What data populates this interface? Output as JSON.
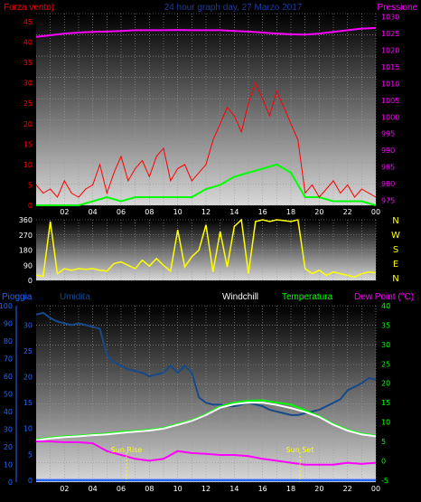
{
  "header": {
    "left_label": "Forza vento)",
    "title": "24 hour graph day, 27 Marzo 2017",
    "right_label": "Pressione"
  },
  "colors": {
    "wind": "#ff0000",
    "windavg": "#00ff00",
    "pressure": "#ff00ff",
    "direction": "#ffff00",
    "rain": "#2266ff",
    "humidity": "#164a8a",
    "windchill": "#ffffff",
    "temperature": "#00ff00",
    "dewpoint": "#ff00ff",
    "grid": "#9a9a9a",
    "axis": "#ffffff"
  },
  "chart_data": [
    {
      "type": "line",
      "name": "wind-pressure",
      "x_ticks": [
        "02",
        "04",
        "06",
        "08",
        "10",
        "12",
        "14",
        "16",
        "18",
        "20",
        "22",
        "00"
      ],
      "y_left_ticks": [
        "0",
        "5",
        "10",
        "15",
        "20",
        "25",
        "30",
        "35",
        "40",
        "45"
      ],
      "y_right_ticks": [
        "975",
        "980",
        "985",
        "990",
        "995",
        "1000",
        "1005",
        "1010",
        "1015",
        "1020",
        "1025",
        "1030"
      ],
      "ylim_left": [
        0,
        47
      ],
      "ylim_right": [
        973.5,
        1031
      ],
      "grid": true,
      "series": [
        {
          "color_key": "pressure",
          "x": [
            0,
            1,
            2,
            3,
            4,
            5,
            6,
            7,
            8,
            9,
            10,
            11,
            12,
            13,
            14,
            15,
            16,
            17,
            18,
            19,
            20,
            21,
            22,
            23,
            24
          ],
          "y": [
            1024,
            1024.5,
            1025,
            1025.3,
            1025.5,
            1025.6,
            1025.8,
            1026,
            1026,
            1026,
            1026.1,
            1026,
            1026,
            1026,
            1025.8,
            1025.6,
            1025.3,
            1025,
            1024.8,
            1024.7,
            1025,
            1025.5,
            1026,
            1026.5,
            1026.7
          ]
        },
        {
          "color_key": "windavg",
          "x": [
            0,
            1,
            2,
            3,
            4,
            5,
            6,
            7,
            8,
            9,
            10,
            11,
            12,
            13,
            14,
            15,
            16,
            17,
            18,
            19,
            20,
            21,
            22,
            23,
            24
          ],
          "y": [
            0,
            0,
            0,
            0,
            1,
            2,
            1,
            2,
            2,
            2,
            2,
            2,
            4,
            5,
            7,
            8,
            9,
            10,
            8,
            2,
            2,
            1,
            1,
            1,
            0
          ]
        },
        {
          "color_key": "wind",
          "x": [
            0,
            0.5,
            1,
            1.5,
            2,
            2.5,
            3,
            3.5,
            4,
            4.5,
            5,
            5.5,
            6,
            6.5,
            7,
            7.5,
            8,
            8.5,
            9,
            9.5,
            10,
            10.5,
            11,
            11.5,
            12,
            12.5,
            13,
            13.5,
            14,
            14.5,
            15,
            15.5,
            16,
            16.5,
            17,
            17.5,
            18,
            18.5,
            19,
            19.5,
            20,
            20.5,
            21,
            21.5,
            22,
            22.5,
            23,
            23.5,
            24
          ],
          "y": [
            5,
            3,
            4,
            2,
            6,
            3,
            2,
            4,
            5,
            10,
            3,
            8,
            12,
            6,
            9,
            11,
            7,
            12,
            14,
            6,
            9,
            10,
            6,
            8,
            10,
            16,
            20,
            24,
            22,
            18,
            25,
            30,
            26,
            22,
            28,
            24,
            20,
            16,
            3,
            5,
            2,
            4,
            6,
            3,
            5,
            2,
            4,
            3,
            2
          ]
        }
      ]
    },
    {
      "type": "line",
      "name": "wind-direction",
      "x_ticks": [],
      "y_left_ticks": [
        "0",
        "90",
        "180",
        "270",
        "360"
      ],
      "y_right_ticks": [
        "N",
        "W",
        "S",
        "E",
        "N"
      ],
      "ylim": [
        0,
        360
      ],
      "grid": true,
      "series": [
        {
          "color_key": "direction",
          "x": [
            0,
            0.5,
            1,
            1.5,
            2,
            2.5,
            3,
            3.5,
            4,
            4.5,
            5,
            5.5,
            6,
            6.5,
            7,
            7.5,
            8,
            8.5,
            9,
            9.5,
            10,
            10.5,
            11,
            11.5,
            12,
            12.5,
            13,
            13.5,
            14,
            14.5,
            15,
            15.5,
            16,
            16.5,
            17,
            17.5,
            18,
            18.5,
            19,
            19.5,
            20,
            20.5,
            21,
            21.5,
            22,
            22.5,
            23,
            23.5,
            24
          ],
          "y": [
            30,
            25,
            350,
            40,
            70,
            60,
            70,
            65,
            70,
            60,
            55,
            100,
            110,
            90,
            70,
            120,
            85,
            130,
            90,
            55,
            300,
            80,
            140,
            180,
            330,
            50,
            290,
            80,
            320,
            360,
            40,
            350,
            360,
            350,
            360,
            355,
            350,
            360,
            70,
            40,
            60,
            30,
            50,
            40,
            30,
            20,
            40,
            50,
            45
          ]
        }
      ]
    },
    {
      "type": "line",
      "name": "rain-humidity-temperature",
      "x_ticks": [
        "02",
        "04",
        "06",
        "08",
        "10",
        "12",
        "14",
        "16",
        "18",
        "20",
        "22",
        "00"
      ],
      "y_left_ticks": [
        "0",
        "5",
        "10",
        "15",
        "20",
        "25",
        "30"
      ],
      "y_left2_ticks": [
        "0",
        "10",
        "20",
        "30",
        "40",
        "50",
        "60",
        "70",
        "80",
        "90",
        "100"
      ],
      "y_right_ticks": [
        "-5",
        "0",
        "5",
        "10",
        "15",
        "20",
        "25",
        "30",
        "35",
        "40"
      ],
      "ylim_temp": [
        -5.5,
        40
      ],
      "ylim_humidity": [
        0,
        100
      ],
      "labels": [
        "Pioggia",
        "Umidita",
        "Windchill",
        "Temperatura",
        "Dew Point (°C)"
      ],
      "annotations": [
        "Sun Rise",
        "Sun Set"
      ],
      "grid": true,
      "series": [
        {
          "color_key": "humidity",
          "axis": "humidity",
          "x": [
            0,
            0.5,
            1,
            1.5,
            2,
            2.5,
            3,
            3.5,
            4,
            4.5,
            5,
            5.5,
            6,
            6.5,
            7,
            7.5,
            8,
            8.5,
            9,
            9.5,
            10,
            10.5,
            11,
            11.5,
            12,
            12.5,
            13,
            13.5,
            14,
            14.5,
            15,
            15.5,
            16,
            16.5,
            17,
            17.5,
            18,
            18.5,
            19,
            19.5,
            20,
            20.5,
            21,
            21.5,
            22,
            22.5,
            23,
            23.5,
            24
          ],
          "y": [
            95,
            96,
            93,
            91,
            90,
            89,
            90,
            89,
            88,
            87,
            72,
            68,
            66,
            64,
            63,
            62,
            60,
            61,
            62,
            66,
            62,
            66,
            62,
            48,
            45,
            44,
            44,
            43,
            43,
            44,
            45,
            44,
            43,
            41,
            40,
            39,
            38,
            38,
            39,
            40,
            41,
            43,
            45,
            47,
            52,
            54,
            56,
            59,
            58
          ]
        },
        {
          "color_key": "temperature",
          "axis": "temp",
          "x": [
            0,
            1,
            2,
            3,
            4,
            5,
            6,
            7,
            8,
            9,
            10,
            11,
            12,
            13,
            14,
            15,
            16,
            17,
            18,
            19,
            20,
            21,
            22,
            23,
            24
          ],
          "y": [
            5.5,
            6,
            6.3,
            6.5,
            6.8,
            7,
            7.5,
            7.7,
            8,
            8.5,
            9.5,
            10.5,
            12,
            14,
            15,
            15.5,
            15.6,
            15,
            14.5,
            13,
            11.5,
            9.5,
            8,
            7,
            6.5
          ]
        },
        {
          "color_key": "windchill",
          "axis": "temp",
          "x": [
            0,
            1,
            2,
            3,
            4,
            5,
            6,
            7,
            8,
            9,
            10,
            11,
            12,
            13,
            14,
            15,
            16,
            17,
            18,
            19,
            20,
            21,
            22,
            23,
            24
          ],
          "y": [
            5.3,
            5.8,
            6.1,
            6.3,
            6.6,
            6.8,
            7.2,
            7.5,
            7.8,
            8.3,
            9.3,
            10.3,
            11.8,
            13.7,
            14.6,
            15,
            15,
            14.4,
            13.6,
            12.6,
            11.3,
            9.3,
            7.8,
            6.8,
            6.3
          ]
        },
        {
          "color_key": "dewpoint",
          "axis": "temp",
          "x": [
            0,
            1,
            2,
            3,
            4,
            5,
            6,
            7,
            8,
            9,
            10,
            11,
            12,
            13,
            14,
            15,
            16,
            17,
            18,
            19,
            20,
            21,
            22,
            23,
            24
          ],
          "y": [
            5,
            5,
            4.8,
            4.8,
            4.5,
            2.5,
            1.5,
            0.5,
            0,
            0.5,
            2.5,
            2,
            1.8,
            1.5,
            1.5,
            1.2,
            0.5,
            0,
            -0.5,
            -1,
            -1,
            -1,
            -0.5,
            -0.8,
            -0.5
          ]
        },
        {
          "color_key": "rain",
          "axis": "rain",
          "x": [
            0,
            24
          ],
          "y": [
            0,
            0
          ]
        }
      ]
    }
  ]
}
